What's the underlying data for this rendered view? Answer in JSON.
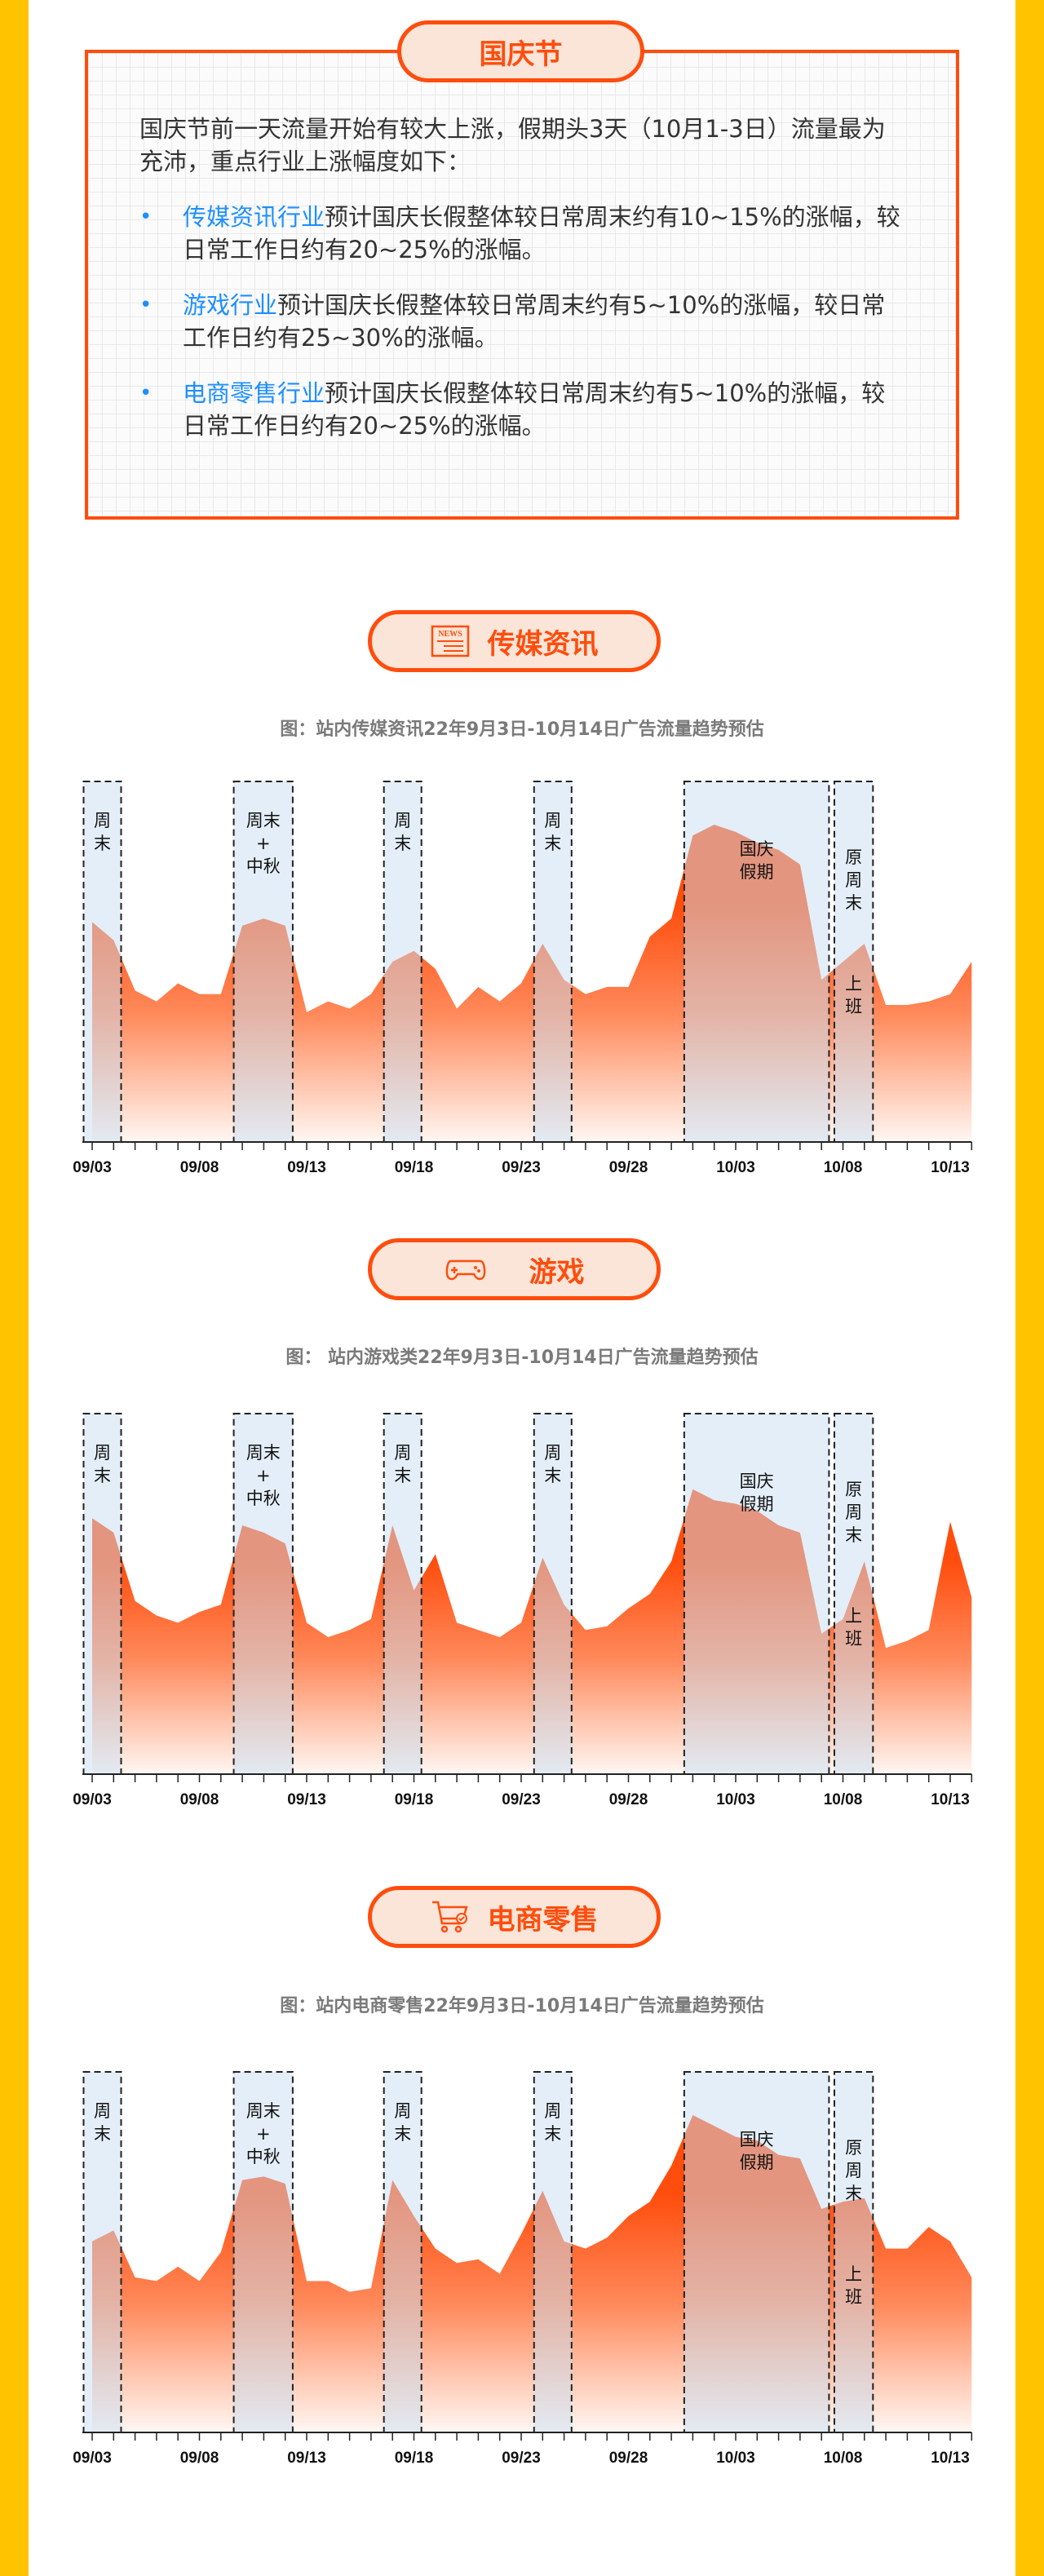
{
  "colors": {
    "frame": "#ffc300",
    "accent": "#ff4d0d",
    "pill_bg": "#fbe5d8",
    "highlight": "#1e8fff",
    "band": "#e4eef8"
  },
  "holiday": {
    "title": "国庆节",
    "intro": "国庆节前一天流量开始有较大上涨，假期头3天（10月1-3日）流量最为充沛，重点行业上涨幅度如下：",
    "bullets": [
      {
        "highlight": "传媒资讯行业",
        "text": "预计国庆长假整体较日常周末约有10~15%的涨幅，较日常工作日约有20~25%的涨幅。"
      },
      {
        "highlight": "游戏行业",
        "text": "预计国庆长假整体较日常周末约有5~10%的涨幅，较日常工作日约有25~30%的涨幅。"
      },
      {
        "highlight": "电商零售行业",
        "text": "预计国庆长假整体较日常周末约有5~10%的涨幅，较日常工作日约有20~25%的涨幅。"
      }
    ]
  },
  "sections": [
    {
      "title": "传媒资讯",
      "icon": "news-icon",
      "caption": "图：站内传媒资讯22年9月3日-10月14日广告流量趋势预估"
    },
    {
      "title": "游戏",
      "icon": "gamepad-icon",
      "caption": "图：  站内游戏类22年9月3日-10月14日广告流量趋势预估"
    },
    {
      "title": "电商零售",
      "icon": "shopping-cart-icon",
      "caption": "图：站内电商零售22年9月3日-10月14日广告流量趋势预估"
    }
  ],
  "chart_data": [
    {
      "type": "area",
      "title": "图：站内传媒资讯22年9月3日-10月14日广告流量趋势预估",
      "xlabel": "",
      "ylabel": "",
      "ylim": [
        0,
        100
      ],
      "grid": false,
      "x_start": "09/03",
      "x_end": "10/14",
      "tick_labels": [
        "09/03",
        "09/08",
        "09/13",
        "09/18",
        "09/23",
        "09/28",
        "10/03",
        "10/08",
        "10/13"
      ],
      "values": [
        61,
        56,
        42,
        39,
        44,
        41,
        41,
        60,
        62,
        60,
        36,
        39,
        37,
        41,
        50,
        53,
        48,
        37,
        43,
        39,
        44,
        55,
        45,
        41,
        43,
        43,
        57,
        62,
        85,
        88,
        86,
        83,
        81,
        77,
        45,
        50,
        55,
        38,
        38,
        39,
        41,
        50
      ],
      "bands": [
        {
          "start": "09/03",
          "end": "09/04",
          "label": [
            "周",
            "末"
          ]
        },
        {
          "start": "09/10",
          "end": "09/12",
          "label": [
            "周末",
            "+",
            "中秋"
          ]
        },
        {
          "start": "09/17",
          "end": "09/18",
          "label": [
            "周",
            "末"
          ]
        },
        {
          "start": "09/24",
          "end": "09/25",
          "label": [
            "周",
            "末"
          ]
        },
        {
          "start": "10/01",
          "end": "10/07",
          "label": [
            "国庆",
            "假期"
          ]
        },
        {
          "start": "10/08",
          "end": "10/09",
          "label": [
            "原",
            "周",
            "末"
          ],
          "sublabel": [
            "上",
            "班"
          ]
        }
      ]
    },
    {
      "type": "area",
      "title": "图：  站内游戏类22年9月3日-10月14日广告流量趋势预估",
      "xlabel": "",
      "ylabel": "",
      "ylim": [
        0,
        100
      ],
      "grid": false,
      "x_start": "09/03",
      "x_end": "10/14",
      "tick_labels": [
        "09/03",
        "09/08",
        "09/13",
        "09/18",
        "09/23",
        "09/28",
        "10/03",
        "10/08",
        "10/13"
      ],
      "values": [
        71,
        67,
        48,
        44,
        42,
        45,
        47,
        69,
        67,
        64,
        42,
        38,
        40,
        43,
        69,
        51,
        61,
        42,
        40,
        38,
        42,
        60,
        47,
        40,
        41,
        46,
        50,
        59,
        79,
        76,
        75,
        73,
        69,
        67,
        39,
        43,
        59,
        35,
        37,
        40,
        70,
        49
      ],
      "bands": [
        {
          "start": "09/03",
          "end": "09/04",
          "label": [
            "周",
            "末"
          ]
        },
        {
          "start": "09/10",
          "end": "09/12",
          "label": [
            "周末",
            "+",
            "中秋"
          ]
        },
        {
          "start": "09/17",
          "end": "09/18",
          "label": [
            "周",
            "末"
          ]
        },
        {
          "start": "09/24",
          "end": "09/25",
          "label": [
            "周",
            "末"
          ]
        },
        {
          "start": "10/01",
          "end": "10/07",
          "label": [
            "国庆",
            "假期"
          ]
        },
        {
          "start": "10/08",
          "end": "10/09",
          "label": [
            "原",
            "周",
            "末"
          ],
          "sublabel": [
            "上",
            "班"
          ]
        }
      ]
    },
    {
      "type": "area",
      "title": "图：站内电商零售22年9月3日-10月14日广告流量趋势预估",
      "xlabel": "",
      "ylabel": "",
      "ylim": [
        0,
        100
      ],
      "grid": false,
      "x_start": "09/03",
      "x_end": "10/14",
      "tick_labels": [
        "09/03",
        "09/08",
        "09/13",
        "09/18",
        "09/23",
        "09/28",
        "10/03",
        "10/08",
        "10/13"
      ],
      "values": [
        53,
        56,
        43,
        42,
        46,
        42,
        50,
        70,
        71,
        69,
        42,
        42,
        39,
        40,
        70,
        60,
        51,
        47,
        48,
        44,
        55,
        67,
        53,
        51,
        54,
        60,
        64,
        74,
        88,
        85,
        82,
        81,
        77,
        76,
        62,
        64,
        65,
        51,
        51,
        57,
        53,
        43
      ],
      "bands": [
        {
          "start": "09/03",
          "end": "09/04",
          "label": [
            "周",
            "末"
          ]
        },
        {
          "start": "09/10",
          "end": "09/12",
          "label": [
            "周末",
            "+",
            "中秋"
          ]
        },
        {
          "start": "09/17",
          "end": "09/18",
          "label": [
            "周",
            "末"
          ]
        },
        {
          "start": "09/24",
          "end": "09/25",
          "label": [
            "周",
            "末"
          ]
        },
        {
          "start": "10/01",
          "end": "10/07",
          "label": [
            "国庆",
            "假期"
          ]
        },
        {
          "start": "10/08",
          "end": "10/09",
          "label": [
            "原",
            "周",
            "末"
          ],
          "sublabel": [
            "上",
            "班"
          ]
        }
      ]
    }
  ]
}
